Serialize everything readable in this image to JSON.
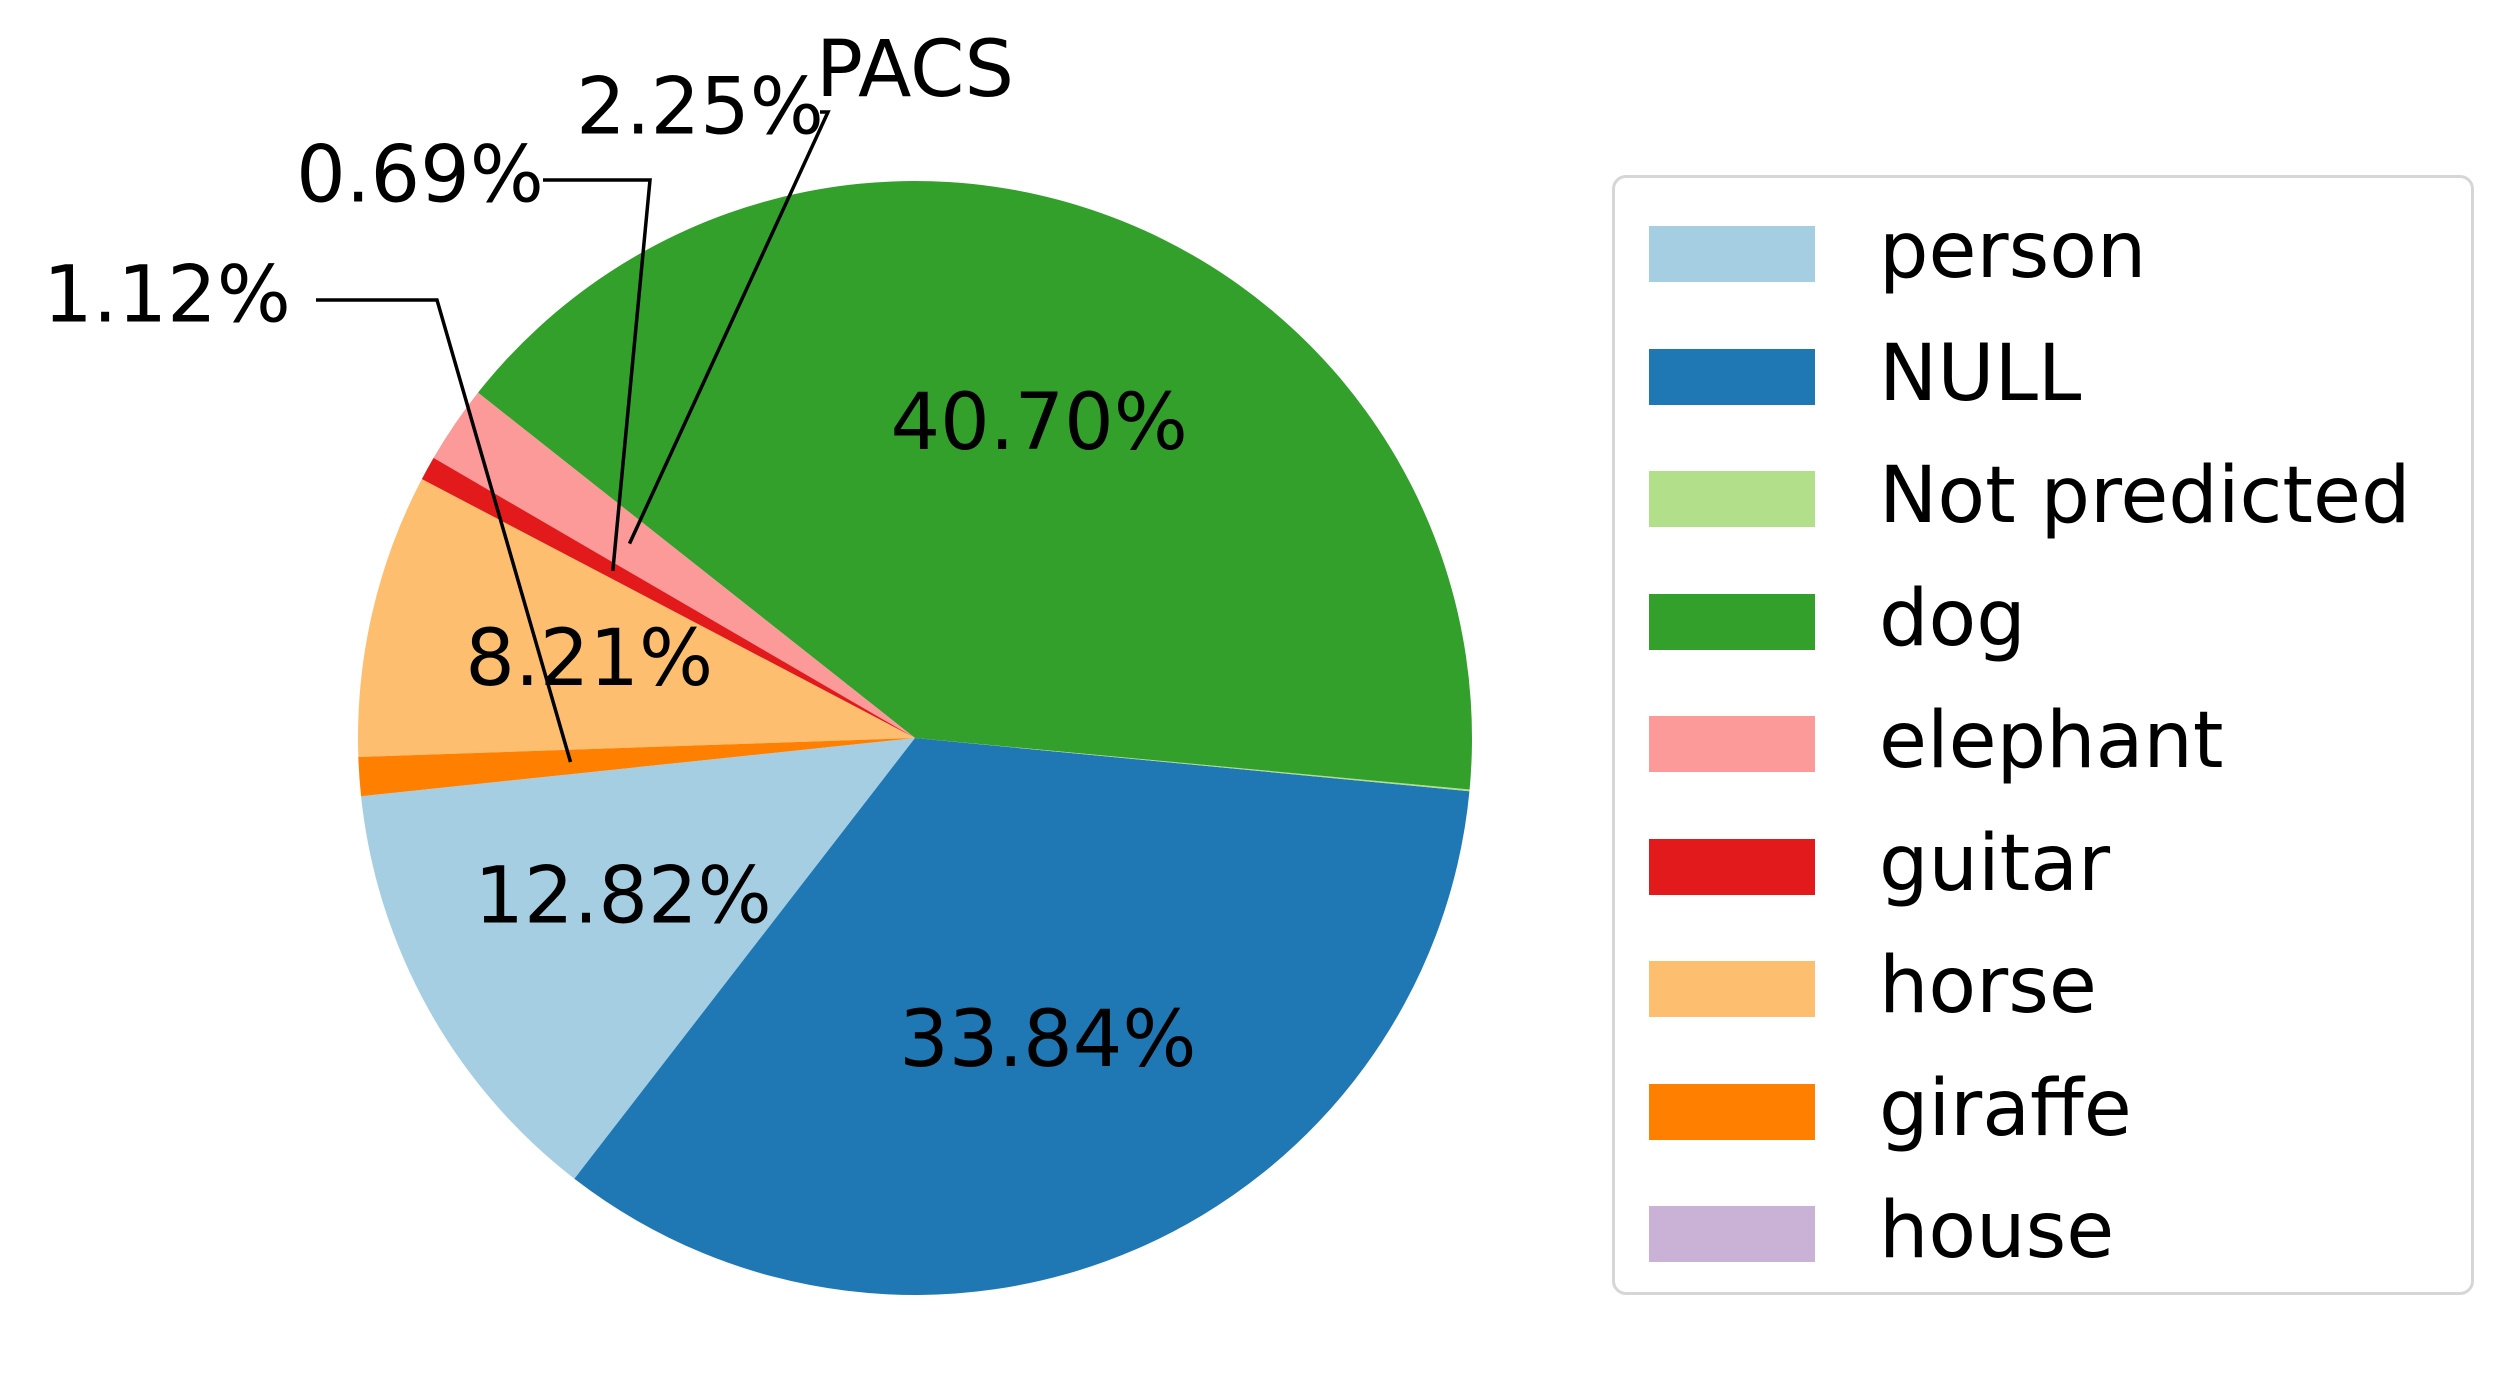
{
  "chart_data": {
    "type": "pie",
    "title": "PACS",
    "slices": [
      {
        "label": "person",
        "value": 12.82,
        "color": "#a6cee3",
        "display_label": "12.82%"
      },
      {
        "label": "NULL",
        "value": 33.84,
        "color": "#1f78b4",
        "display_label": "33.84%"
      },
      {
        "label": "Not predicted",
        "value": 0.05,
        "color": "#b2df8a",
        "display_label": ""
      },
      {
        "label": "dog",
        "value": 40.7,
        "color": "#33a02c",
        "display_label": "40.70%"
      },
      {
        "label": "elephant",
        "value": 2.25,
        "color": "#fb9a99",
        "display_label": "2.25%"
      },
      {
        "label": "guitar",
        "value": 0.69,
        "color": "#e31a1c",
        "display_label": "0.69%"
      },
      {
        "label": "horse",
        "value": 8.21,
        "color": "#fdbf6f",
        "display_label": "8.21%"
      },
      {
        "label": "giraffe",
        "value": 1.12,
        "color": "#ff7f00",
        "display_label": "1.12%"
      },
      {
        "label": "house",
        "value": 0.0,
        "color": "#cab2d6",
        "display_label": ""
      }
    ],
    "legend": {
      "placement": "right",
      "entries": [
        "person",
        "NULL",
        "Not predicted",
        "dog",
        "elephant",
        "guitar",
        "horse",
        "giraffe",
        "house"
      ]
    }
  }
}
